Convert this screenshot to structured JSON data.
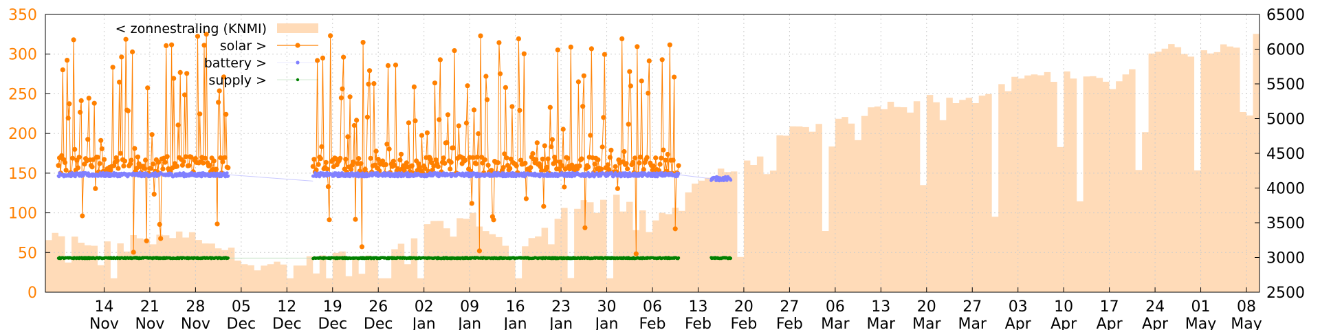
{
  "chart_data": {
    "type": "line",
    "title": "",
    "xlabel": "",
    "ylabel": "",
    "ylim": [
      0,
      350
    ],
    "y2lim": [
      2500,
      6500
    ],
    "grid": true,
    "legend_position": "top-left",
    "y_ticks_left": [
      "0",
      "50",
      "100",
      "150",
      "200",
      "250",
      "300",
      "350"
    ],
    "y_ticks_right": [
      "2500",
      "3000",
      "3500",
      "4000",
      "4500",
      "5000",
      "5500",
      "6000",
      "6500"
    ],
    "x_ticks": [
      {
        "day": "14",
        "month": "Nov"
      },
      {
        "day": "21",
        "month": "Nov"
      },
      {
        "day": "28",
        "month": "Nov"
      },
      {
        "day": "05",
        "month": "Dec"
      },
      {
        "day": "12",
        "month": "Dec"
      },
      {
        "day": "19",
        "month": "Dec"
      },
      {
        "day": "26",
        "month": "Dec"
      },
      {
        "day": "02",
        "month": "Jan"
      },
      {
        "day": "09",
        "month": "Jan"
      },
      {
        "day": "16",
        "month": "Jan"
      },
      {
        "day": "23",
        "month": "Jan"
      },
      {
        "day": "30",
        "month": "Jan"
      },
      {
        "day": "06",
        "month": "Feb"
      },
      {
        "day": "13",
        "month": "Feb"
      },
      {
        "day": "20",
        "month": "Feb"
      },
      {
        "day": "27",
        "month": "Feb"
      },
      {
        "day": "06",
        "month": "Mar"
      },
      {
        "day": "13",
        "month": "Mar"
      },
      {
        "day": "20",
        "month": "Mar"
      },
      {
        "day": "27",
        "month": "Mar"
      },
      {
        "day": "03",
        "month": "Apr"
      },
      {
        "day": "10",
        "month": "Apr"
      },
      {
        "day": "17",
        "month": "Apr"
      },
      {
        "day": "24",
        "month": "Apr"
      },
      {
        "day": "01",
        "month": "May"
      },
      {
        "day": "08",
        "month": "May"
      }
    ],
    "series": [
      {
        "name": "< zonnestraling (KNMI)",
        "axis": "right",
        "style": "area",
        "color": "#ffdbb8",
        "x_dates": [
          "2021-11-07",
          "2021-11-14",
          "2021-11-21",
          "2021-11-28",
          "2021-12-05",
          "2021-12-12",
          "2021-12-19",
          "2021-12-26",
          "2022-01-02",
          "2022-01-09",
          "2022-01-16",
          "2022-01-23",
          "2022-01-30",
          "2022-02-06",
          "2022-02-13",
          "2022-02-20",
          "2022-02-27",
          "2022-03-06",
          "2022-03-13",
          "2022-03-20",
          "2022-03-27",
          "2022-04-03",
          "2022-04-10",
          "2022-04-17",
          "2022-04-24",
          "2022-05-01",
          "2022-05-08",
          "2022-05-10"
        ],
        "values": [
          3250,
          3150,
          3300,
          3280,
          2950,
          2820,
          3050,
          2900,
          3400,
          3550,
          3000,
          3700,
          3850,
          3500,
          4100,
          4300,
          4800,
          4900,
          5150,
          5250,
          5250,
          5550,
          5650,
          5450,
          6000,
          5900,
          6200,
          6300
        ]
      },
      {
        "name": "solar >",
        "axis": "left",
        "style": "line-points",
        "color": "#ff8000",
        "segments": [
          {
            "start": "2021-11-07",
            "end": "2021-12-03",
            "base": 160,
            "peak_max": 328,
            "low_min": 48
          },
          {
            "start": "2021-12-16",
            "end": "2022-02-10",
            "base": 160,
            "peak_max": 328,
            "low_min": 48
          }
        ]
      },
      {
        "name": "battery >",
        "axis": "left",
        "style": "points",
        "color": "#8080ff",
        "segments": [
          {
            "start": "2021-11-07",
            "end": "2021-12-03",
            "value": 148
          },
          {
            "start": "2021-12-16",
            "end": "2022-02-10",
            "value": 148
          },
          {
            "start": "2022-02-15",
            "end": "2022-02-18",
            "value": 143
          }
        ]
      },
      {
        "name": "supply >",
        "axis": "left",
        "style": "points",
        "color": "#008000",
        "segments": [
          {
            "start": "2021-11-07",
            "end": "2021-12-03",
            "value": 43
          },
          {
            "start": "2021-12-16",
            "end": "2022-02-10",
            "value": 43
          },
          {
            "start": "2022-02-15",
            "end": "2022-02-18",
            "value": 43
          }
        ]
      }
    ]
  }
}
